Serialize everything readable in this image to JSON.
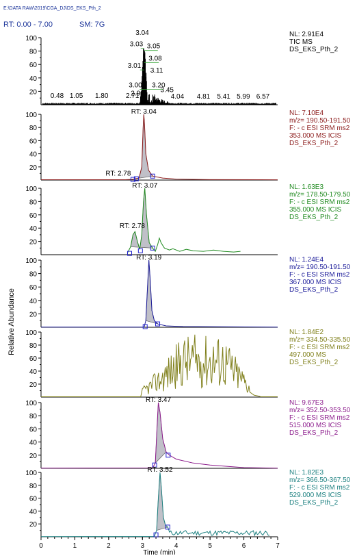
{
  "file_path": "E:\\DATA RAW\\2019\\CGA_DJ\\DS_EKS_Pth_2",
  "rt_range_label": "RT: 0.00 - 7.00",
  "sm_label": "SM: 7G",
  "y_axis_label": "Relative Abundance",
  "x_axis_label": "Time (min)",
  "colors": {
    "header": "#1a3399",
    "tic": "#000000",
    "p1": "#8b1a1a",
    "p2": "#1f8a1f",
    "p3": "#1a1a99",
    "p4": "#7f7f1a",
    "p5": "#8b1a8b",
    "p6": "#1a7f7f",
    "fill": "#c0c0c8",
    "marker": "#2222cc",
    "axis": "#000000"
  },
  "panels": [
    {
      "id": "tic",
      "info": [
        "NL: 2.91E4",
        "TIC  MS",
        "DS_EKS_Pth_2"
      ],
      "color_key": "tic",
      "type": "tic",
      "rt_labels": [
        "0.48",
        "1.05",
        "1.80",
        "2.71",
        "2.98",
        "3.00",
        "3.01",
        "3.03",
        "3.04",
        "3.05",
        "3.08",
        "3.11",
        "3.20",
        "3.45",
        "4.04",
        "4.81",
        "5.41",
        "5.99",
        "6.57"
      ]
    },
    {
      "id": "p1",
      "info": [
        "NL: 7.10E4",
        "m/z= 190.50-191.50",
        "F: - c ESI SRM ms2",
        "353.000  MS  ICIS",
        "DS_EKS_Pth_2"
      ],
      "color_key": "p1",
      "peak_label": "RT: 3.04",
      "peak_rt": 3.04,
      "second_label": "RT: 2.78",
      "second_rt": 2.78
    },
    {
      "id": "p2",
      "info": [
        "NL: 1.63E3",
        "m/z= 178.50-179.50",
        "F: - c ESI SRM ms2",
        "355.000  MS  ICIS",
        "DS_EKS_Pth_2"
      ],
      "color_key": "p2",
      "peak_label": "RT: 3.07",
      "peak_rt": 3.07,
      "second_label": "RT: 2.78",
      "second_rt": 2.78
    },
    {
      "id": "p3",
      "info": [
        "NL: 1.24E4",
        "m/z= 190.50-191.50",
        "F: - c ESI SRM ms2",
        "367.000  MS  ICIS",
        "DS_EKS_Pth_2"
      ],
      "color_key": "p3",
      "peak_label": "RT: 3.19",
      "peak_rt": 3.19
    },
    {
      "id": "p4",
      "info": [
        "NL: 1.84E2",
        "m/z= 334.50-335.50",
        "F: - c ESI SRM ms2",
        "497.000  MS",
        "DS_EKS_Pth_2"
      ],
      "color_key": "p4"
    },
    {
      "id": "p5",
      "info": [
        "NL: 9.67E3",
        "m/z= 352.50-353.50",
        "F: - c ESI SRM ms2",
        "515.000  MS  ICIS",
        "DS_EKS_Pth_2"
      ],
      "color_key": "p5",
      "peak_label": "RT: 3.47",
      "peak_rt": 3.47
    },
    {
      "id": "p6",
      "info": [
        "NL: 1.82E3",
        "m/z= 366.50-367.50",
        "F: - c ESI SRM ms2",
        "529.000  MS  ICIS",
        "DS_EKS_Pth_2"
      ],
      "color_key": "p6",
      "peak_label": "RT: 3.52",
      "peak_rt": 3.52
    }
  ],
  "y_ticks": [
    "100",
    "80",
    "60",
    "40",
    "20"
  ],
  "x_ticks": [
    "0",
    "1",
    "2",
    "3",
    "4",
    "5",
    "6",
    "7"
  ],
  "chart_data": {
    "type": "line",
    "xlim": [
      0,
      7
    ],
    "ylim": [
      0,
      100
    ],
    "xlabel": "Time (min)",
    "ylabel": "Relative Abundance",
    "series": [
      {
        "name": "TIC MS",
        "x": [
          0.48,
          1.05,
          1.8,
          2.71,
          2.98,
          3.0,
          3.01,
          3.03,
          3.04,
          3.05,
          3.08,
          3.11,
          3.2,
          3.45,
          4.04,
          4.81,
          5.41,
          5.99,
          6.57
        ],
        "y": [
          1,
          1,
          1,
          1,
          10,
          16,
          35,
          57,
          70,
          55,
          40,
          30,
          14,
          8,
          2,
          1,
          1,
          1,
          1
        ]
      },
      {
        "name": "m/z= 190.50-191.50 (353.000)",
        "x": [
          2.5,
          2.7,
          2.78,
          2.9,
          3.0,
          3.04,
          3.08,
          3.15,
          3.3,
          3.6,
          4.0,
          7.0
        ],
        "y": [
          0,
          1,
          3,
          6,
          50,
          100,
          75,
          30,
          8,
          3,
          1,
          0
        ]
      },
      {
        "name": "m/z= 178.50-179.50 (355.000)",
        "x": [
          2.6,
          2.7,
          2.78,
          2.9,
          3.0,
          3.07,
          3.15,
          3.3,
          3.5,
          3.7,
          4.0,
          5.0,
          6.0
        ],
        "y": [
          2,
          25,
          35,
          12,
          60,
          100,
          55,
          12,
          25,
          6,
          8,
          5,
          4
        ]
      },
      {
        "name": "m/z= 190.50-191.50 (367.000)",
        "x": [
          3.0,
          3.1,
          3.19,
          3.25,
          3.35,
          3.5,
          4.0,
          7.0
        ],
        "y": [
          0,
          25,
          100,
          60,
          10,
          3,
          1,
          0
        ]
      },
      {
        "name": "m/z= 334.50-335.50 (497.000)",
        "x": [
          3.0,
          3.3,
          3.6,
          4.2,
          4.5,
          5.0,
          5.5,
          6.0,
          6.2,
          6.5
        ],
        "y": [
          0,
          25,
          55,
          75,
          85,
          80,
          70,
          48,
          25,
          2
        ]
      },
      {
        "name": "m/z= 352.50-353.50 (515.000)",
        "x": [
          3.2,
          3.35,
          3.47,
          3.55,
          3.7,
          3.9,
          4.5,
          5.5,
          6.0
        ],
        "y": [
          0,
          20,
          100,
          75,
          30,
          18,
          8,
          3,
          1
        ]
      },
      {
        "name": "m/z= 366.50-367.50 (529.000)",
        "x": [
          3.3,
          3.45,
          3.52,
          3.6,
          3.8,
          4.2,
          5.0,
          6.0,
          6.8
        ],
        "y": [
          0,
          35,
          100,
          70,
          15,
          10,
          8,
          5,
          3
        ]
      }
    ]
  }
}
